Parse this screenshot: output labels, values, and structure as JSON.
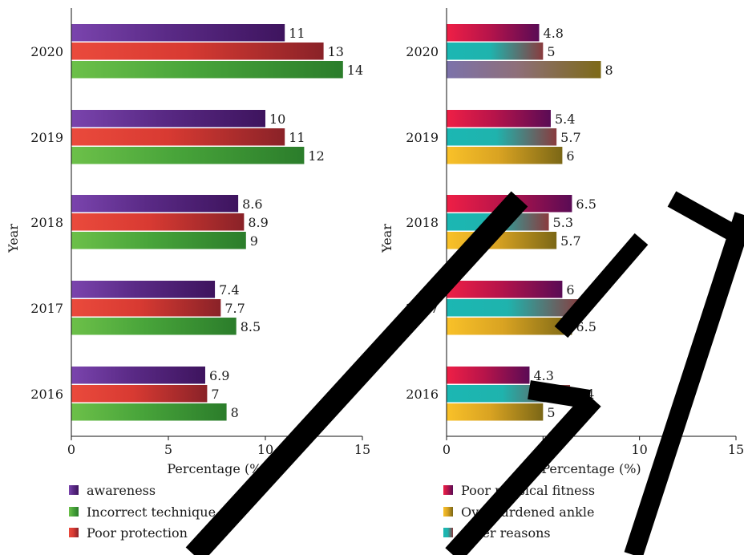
{
  "colors": {
    "awareness": [
      "#7a44ad",
      "#5a2a86",
      "#3e145e"
    ],
    "Incorrect technique": [
      "#6cc049",
      "#48a43a",
      "#2b7d2b"
    ],
    "Poor protection": [
      "#ea4a3c",
      "#d83a32",
      "#8a2228"
    ],
    "Poor physical fitness": [
      "#ee1f46",
      "#b8144a",
      "#5a0b55"
    ],
    "Overburdened ankle": [
      "#f9c129",
      "#d9a322",
      "#7b6716"
    ],
    "other reasons": [
      "#1bb7b3",
      "#1fb3ad",
      "#8a3b3e"
    ],
    "2020 Overburdened ankle": [
      "#7c72aa",
      "#8e6f7a",
      "#7d6a18"
    ]
  },
  "chart_data": [
    {
      "type": "bar",
      "orientation": "horizontal",
      "categories": [
        "2020",
        "2019",
        "2018",
        "2017",
        "2016"
      ],
      "series": [
        {
          "name": "awareness",
          "values": [
            11,
            10,
            8.6,
            7.4,
            6.9
          ]
        },
        {
          "name": "Poor protection",
          "values": [
            13,
            11,
            8.9,
            7.7,
            7
          ]
        },
        {
          "name": "Incorrect technique",
          "values": [
            14,
            12,
            9,
            8.5,
            8
          ]
        }
      ],
      "data_labels": [
        [
          "11",
          "13",
          "14"
        ],
        [
          "10",
          "11",
          "12"
        ],
        [
          "8.6",
          "8.9",
          "9"
        ],
        [
          "7.4",
          "7.7",
          "8.5"
        ],
        [
          "6.9",
          "7",
          "8"
        ]
      ],
      "xlabel": "Percentage (%)",
      "ylabel": "Year",
      "xlim": [
        0,
        15
      ],
      "xticks": [
        "0",
        "5",
        "10",
        "15"
      ],
      "grid": false,
      "legend": {
        "position": "bottom",
        "entries": [
          "awareness",
          "Incorrect technique",
          "Poor protection"
        ]
      }
    },
    {
      "type": "bar",
      "orientation": "horizontal",
      "categories": [
        "2020",
        "2019",
        "2018",
        "2017",
        "2016"
      ],
      "series": [
        {
          "name": "Poor physical fitness",
          "values": [
            4.8,
            5.4,
            6.5,
            6,
            4.3
          ]
        },
        {
          "name": "other reasons",
          "values": [
            5,
            5.7,
            5.3,
            7,
            6.4
          ]
        },
        {
          "name": "Overburdened ankle",
          "values": [
            8,
            6,
            5.7,
            6.5,
            5
          ]
        }
      ],
      "data_labels": [
        [
          "4.8",
          "5",
          "8"
        ],
        [
          "5.4",
          "5.7",
          "6"
        ],
        [
          "6.5",
          "5.3",
          "5.7"
        ],
        [
          "6",
          "7",
          "6.5"
        ],
        [
          "4.3",
          "6.4",
          "5"
        ]
      ],
      "xlabel": "Percentage (%)",
      "ylabel": "Year",
      "xlim": [
        0,
        15
      ],
      "xticks": [
        "0",
        "5",
        "10",
        "15"
      ],
      "grid": false,
      "legend": {
        "position": "bottom",
        "entries": [
          "Poor physical fitness",
          "Overburdened ankle",
          "other reasons"
        ]
      }
    }
  ]
}
